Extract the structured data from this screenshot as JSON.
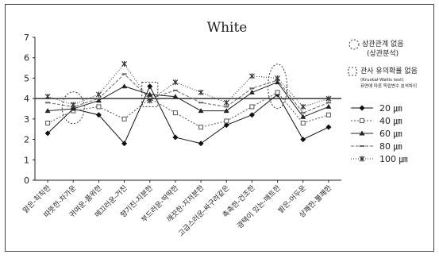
{
  "chart_data": {
    "type": "line",
    "title": "White",
    "xlabel": "",
    "ylabel": "",
    "ylim": [
      0,
      7
    ],
    "yticks": [
      0,
      1,
      2,
      3,
      4,
      5,
      6,
      7
    ],
    "reference_line": 4,
    "grid": false,
    "legend_position": "right",
    "categories": [
      "맑은-칙칙한",
      "따뜻한-차가운",
      "귀여운-품위한",
      "메끄러운-거친",
      "향기친-지분한",
      "부드러운-딱딱한",
      "깨끗한-지저분한",
      "고급스러운-싸구려같은",
      "촉촉한-건조한",
      "광택이 있는-매트한",
      "밝은-어두운",
      "상쾌한-불쾌한"
    ],
    "series": [
      {
        "name": "20 ㎛",
        "marker": "diamond",
        "values": [
          2.3,
          3.5,
          3.2,
          1.8,
          4.6,
          2.1,
          1.8,
          2.7,
          3.2,
          4.2,
          2.0,
          2.6
        ]
      },
      {
        "name": "40 ㎛",
        "marker": "square",
        "values": [
          2.8,
          3.4,
          3.6,
          3.0,
          4.0,
          3.3,
          2.6,
          2.9,
          3.6,
          4.3,
          2.8,
          3.2
        ]
      },
      {
        "name": "60 ㎛",
        "marker": "triangle",
        "values": [
          3.4,
          3.5,
          3.9,
          4.6,
          4.2,
          4.1,
          3.4,
          3.4,
          4.3,
          4.8,
          3.1,
          3.6
        ]
      },
      {
        "name": "80 ㎛",
        "marker": "dash",
        "values": [
          3.8,
          3.6,
          4.0,
          5.2,
          4.0,
          4.4,
          3.8,
          3.6,
          4.5,
          4.9,
          3.3,
          3.8
        ]
      },
      {
        "name": "100 ㎛",
        "marker": "star",
        "values": [
          4.1,
          3.7,
          4.2,
          5.7,
          3.9,
          4.8,
          4.3,
          3.8,
          5.1,
          5.0,
          3.6,
          4.0
        ]
      }
    ],
    "annotations": {
      "circle_legend": "상관관계 없음",
      "circle_legend_sub": "(상관분석)",
      "square_legend": "관사 유의확률 없음",
      "square_legend_sub1": "(Kruskal-Wallis test)",
      "square_legend_sub2": "표면에 따른 독립변수 분석차이"
    }
  }
}
